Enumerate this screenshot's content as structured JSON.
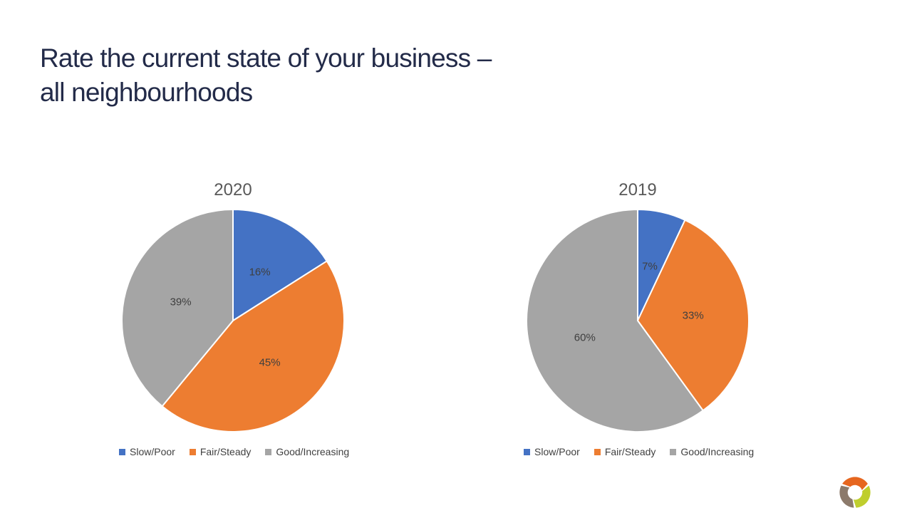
{
  "slide": {
    "title": {
      "line1": "Rate the current state of your business –",
      "line2": "all neighbourhoods"
    },
    "background": "#FFFFFF"
  },
  "colors": {
    "title_text": "#232B49",
    "chart_title_text": "#595959",
    "data_label_text": "#3F3F3F",
    "legend_text": "#404040",
    "slice_border": "#FFFFFF",
    "accent_blue": "#4472C4",
    "accent_orange": "#ED7D31",
    "accent_gray": "#A5A5A5"
  },
  "chart_data": [
    {
      "type": "pie",
      "title": "2020",
      "labels": [
        "Slow/Poor",
        "Fair/Steady",
        "Good/Increasing"
      ],
      "values": [
        16,
        45,
        39
      ],
      "data_labels": [
        "16%",
        "45%",
        "39%"
      ],
      "colors": [
        "#4472C4",
        "#ED7D31",
        "#A5A5A5"
      ],
      "unit": "%",
      "start_angle_deg": 0,
      "direction": "clockwise",
      "legend_position": "bottom"
    },
    {
      "type": "pie",
      "title": "2019",
      "labels": [
        "Slow/Poor",
        "Fair/Steady",
        "Good/Increasing"
      ],
      "values": [
        7,
        33,
        60
      ],
      "data_labels": [
        "7%",
        "33%",
        "60%"
      ],
      "colors": [
        "#4472C4",
        "#ED7D31",
        "#A5A5A5"
      ],
      "unit": "%",
      "start_angle_deg": 0,
      "direction": "clockwise",
      "legend_position": "bottom"
    }
  ],
  "logo": {
    "name": "trefoil-logo",
    "colors": {
      "top": "#E6661F",
      "left": "#8C7A6B",
      "right": "#BFCE2E"
    }
  }
}
